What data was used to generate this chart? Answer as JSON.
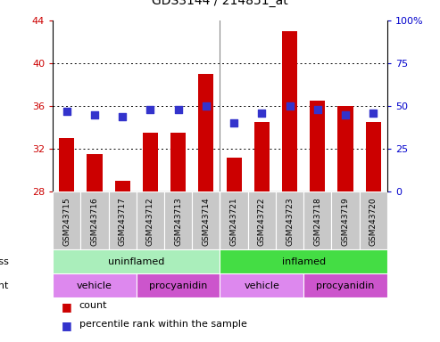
{
  "title": "GDS3144 / 214851_at",
  "samples": [
    "GSM243715",
    "GSM243716",
    "GSM243717",
    "GSM243712",
    "GSM243713",
    "GSM243714",
    "GSM243721",
    "GSM243722",
    "GSM243723",
    "GSM243718",
    "GSM243719",
    "GSM243720"
  ],
  "counts": [
    33.0,
    31.5,
    29.0,
    33.5,
    33.5,
    39.0,
    31.2,
    34.5,
    43.0,
    36.5,
    36.0,
    34.5
  ],
  "percentile_ranks": [
    47,
    45,
    44,
    48,
    48,
    50,
    40,
    46,
    50,
    48,
    45,
    46
  ],
  "y_min": 28,
  "y_max": 44,
  "y_ticks": [
    28,
    32,
    36,
    40,
    44
  ],
  "y2_ticks": [
    0,
    25,
    50,
    75,
    100
  ],
  "bar_color": "#cc0000",
  "dot_color": "#3333cc",
  "stress_uninflamed_color": "#aaeebb",
  "stress_inflamed_color": "#44dd44",
  "agent_vehicle_color": "#dd88ee",
  "agent_procyanidin_color": "#cc55cc",
  "bar_width": 0.55,
  "left_color": "#cc0000",
  "right_color": "#0000cc",
  "bg_plot": "#ffffff",
  "bg_sample": "#c8c8c8",
  "grid_dotted_color": "#000000",
  "title_fontsize": 10,
  "tick_fontsize": 8,
  "sample_fontsize": 6.5,
  "annot_fontsize": 8,
  "stress_labels": [
    {
      "label": "uninflamed",
      "start": 0,
      "end": 6
    },
    {
      "label": "inflamed",
      "start": 6,
      "end": 12
    }
  ],
  "agent_labels": [
    {
      "label": "vehicle",
      "start": 0,
      "end": 3
    },
    {
      "label": "procyanidin",
      "start": 3,
      "end": 6
    },
    {
      "label": "vehicle",
      "start": 6,
      "end": 9
    },
    {
      "label": "procyanidin",
      "start": 9,
      "end": 12
    }
  ]
}
